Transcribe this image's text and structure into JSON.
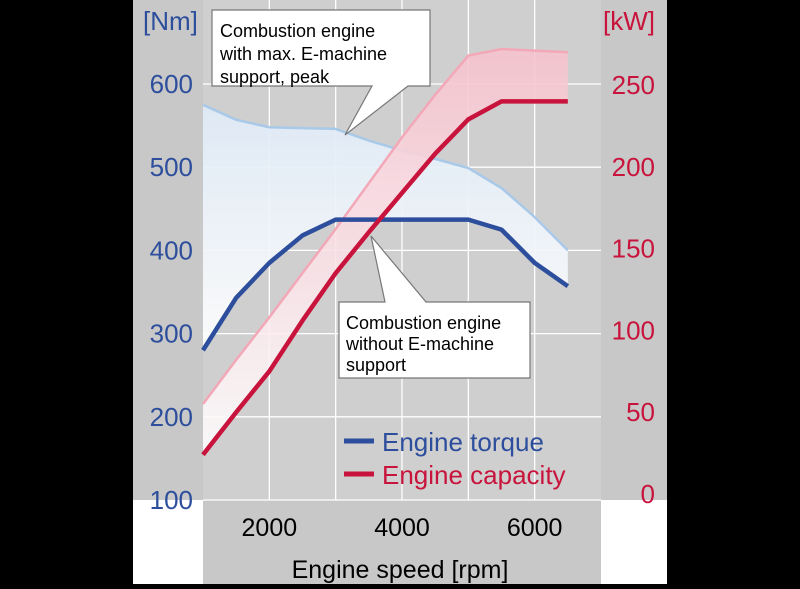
{
  "colors": {
    "background": "#000000",
    "panel": "#c8c8c8",
    "plot_area": "#cfcfcf",
    "torque_color": "#2d4e9c",
    "capacity_color": "#c8143c",
    "torque_band": "#dfeaf6",
    "torque_band_edge": "#a9c9e8",
    "capacity_band": "#f6c2cd",
    "capacity_band_edge": "#f3a8b8",
    "callout_fill": "#ffffff",
    "callout_stroke": "#777777",
    "tick_text": "#000000"
  },
  "chart_data": {
    "type": "line",
    "xlabel": "Engine speed [rpm]",
    "xlim": [
      1000,
      7000
    ],
    "x_ticks": [
      2000,
      4000,
      6000
    ],
    "y_left": {
      "label": "[Nm]",
      "lim": [
        100,
        700
      ],
      "ticks": [
        100,
        200,
        300,
        400,
        500,
        600
      ]
    },
    "y_right": {
      "label": "[kW]",
      "lim": [
        0,
        300
      ],
      "ticks": [
        0,
        50,
        100,
        150,
        200,
        250
      ]
    },
    "grid": true,
    "legend_position": "bottom-right",
    "series": [
      {
        "name": "Engine torque",
        "axis": "left",
        "x": [
          1000,
          1500,
          2000,
          2500,
          3000,
          3500,
          4000,
          4500,
          5000,
          5500,
          6000,
          6500
        ],
        "y": [
          280,
          343,
          385,
          418,
          437,
          437,
          437,
          437,
          437,
          425,
          385,
          357
        ]
      },
      {
        "name": "Engine capacity",
        "axis": "right",
        "x": [
          1000,
          1500,
          2000,
          2500,
          3000,
          3500,
          4000,
          4500,
          5000,
          5500,
          6000,
          6500
        ],
        "y": [
          24,
          50,
          75,
          106,
          135,
          160,
          184,
          208,
          229,
          240,
          240,
          240
        ]
      }
    ],
    "bands": [
      {
        "axis": "left",
        "x": [
          1000,
          1500,
          2000,
          2500,
          3000,
          3500,
          4000,
          4500,
          5000,
          5500,
          6000,
          6500
        ],
        "upper": [
          575,
          557,
          548,
          547,
          546,
          532,
          520,
          510,
          499,
          475,
          440,
          400
        ],
        "lower": [
          280,
          343,
          385,
          418,
          437,
          437,
          437,
          437,
          437,
          425,
          385,
          357
        ]
      },
      {
        "axis": "right",
        "x": [
          1000,
          1500,
          2000,
          2500,
          3000,
          3500,
          4000,
          4500,
          5000,
          5500,
          6000,
          6500
        ],
        "upper": [
          55,
          82,
          108,
          135,
          162,
          190,
          218,
          244,
          268,
          272,
          271,
          270
        ],
        "lower": [
          24,
          50,
          75,
          106,
          135,
          160,
          184,
          208,
          229,
          240,
          240,
          240
        ]
      }
    ],
    "annotations": [
      {
        "lines": [
          "Combustion engine",
          "with max. E-machine",
          "support, peak"
        ]
      },
      {
        "lines": [
          "Combustion engine",
          "without E-machine",
          "support"
        ]
      }
    ]
  }
}
